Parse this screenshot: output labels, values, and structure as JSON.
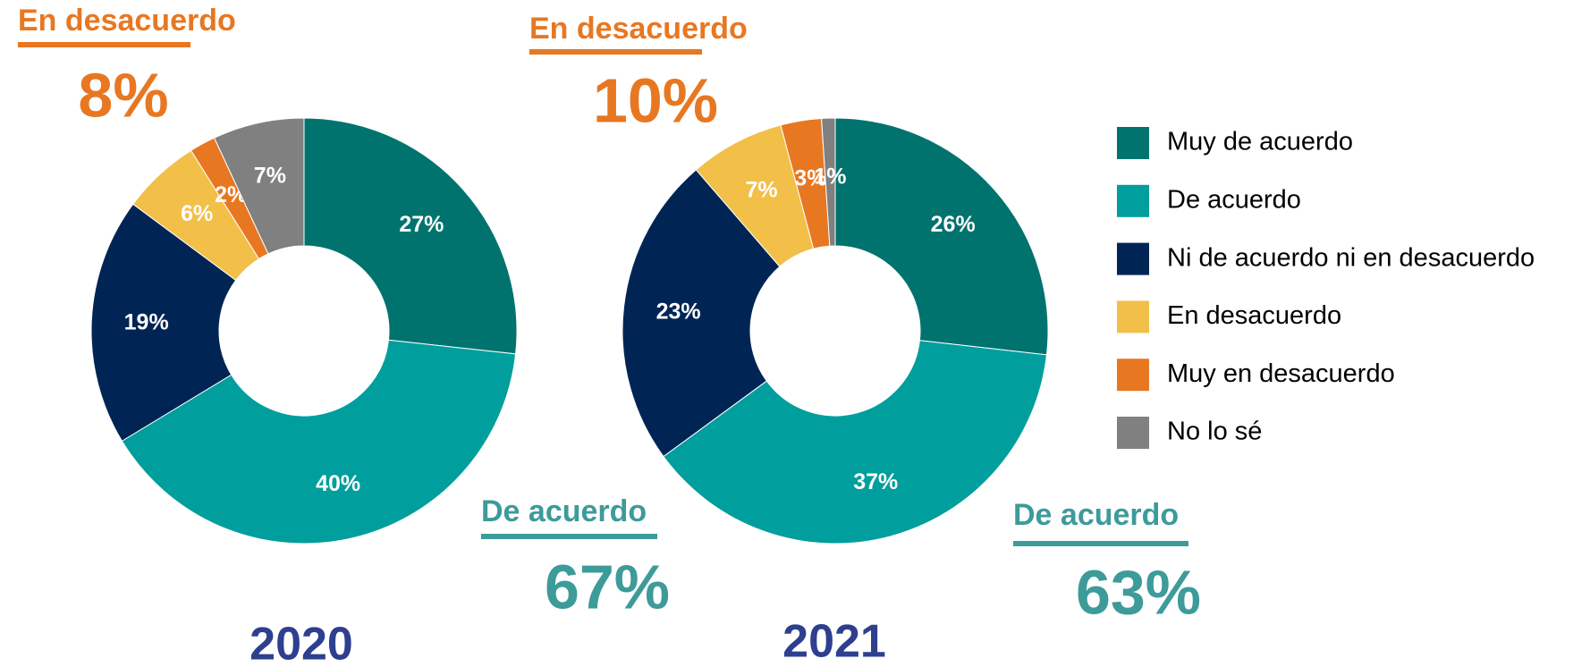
{
  "chart_data": [
    {
      "type": "pie",
      "donut": true,
      "title": "2020",
      "categories": [
        "Muy de acuerdo",
        "De acuerdo",
        "Ni de acuerdo ni en desacuerdo",
        "En desacuerdo",
        "Muy en desacuerdo",
        "No lo sé"
      ],
      "values": [
        27,
        40,
        19,
        6,
        2,
        7
      ],
      "value_labels": [
        "27%",
        "40%",
        "19%",
        "6%",
        "2%",
        "7%"
      ],
      "colors": [
        "#00736e",
        "#009e9c",
        "#002554",
        "#f2bf49",
        "#e87722",
        "#808080"
      ],
      "annotations": [
        {
          "text": "En desacuerdo",
          "value": 8,
          "value_label": "8%",
          "color": "#e87722"
        },
        {
          "text": "De acuerdo",
          "value": 67,
          "value_label": "67%",
          "color": "#3d9b9a"
        }
      ]
    },
    {
      "type": "pie",
      "donut": true,
      "title": "2021",
      "categories": [
        "Muy de acuerdo",
        "De acuerdo",
        "Ni de acuerdo ni en desacuerdo",
        "En desacuerdo",
        "Muy en desacuerdo",
        "No lo sé"
      ],
      "values": [
        26,
        37,
        23,
        7,
        3,
        1
      ],
      "value_labels": [
        "26%",
        "37%",
        "23%",
        "7%",
        "3%",
        "1%"
      ],
      "colors": [
        "#00736e",
        "#009e9c",
        "#002554",
        "#f2bf49",
        "#e87722",
        "#808080"
      ],
      "annotations": [
        {
          "text": "En desacuerdo",
          "value": 10,
          "value_label": "10%",
          "color": "#e87722"
        },
        {
          "text": "De acuerdo",
          "value": 63,
          "value_label": "63%",
          "color": "#3d9b9a"
        }
      ]
    }
  ]
}
